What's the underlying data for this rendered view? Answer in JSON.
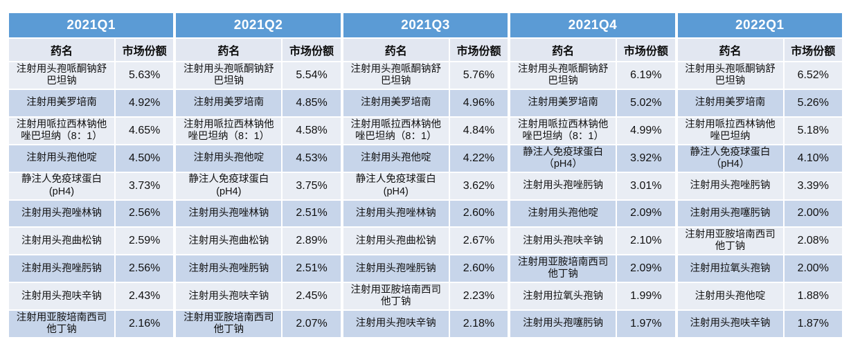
{
  "colors": {
    "accent": "#5b9bd5",
    "subheader_bg": "#e2e7f1",
    "row_light": "#e9edf4",
    "row_dark": "#c7d5ea",
    "header_text": "#ffffff",
    "body_text": "#101010"
  },
  "chart_data": {
    "type": "table",
    "title": "",
    "col_headers": [
      "药名",
      "市场份额"
    ],
    "quarter_labels": [
      "2021Q1",
      "2021Q2",
      "2021Q3",
      "2021Q4",
      "2022Q1"
    ],
    "quarters": [
      {
        "label": "2021Q1",
        "rows": [
          [
            "注射用头孢哌酮钠舒巴坦钠",
            "5.63%"
          ],
          [
            "注射用美罗培南",
            "4.92%"
          ],
          [
            "注射用哌拉西林钠他唑巴坦纳（8：1）",
            "4.65%"
          ],
          [
            "注射用头孢他啶",
            "4.50%"
          ],
          [
            "静注人免疫球蛋白(pH4)",
            "3.73%"
          ],
          [
            "注射用头孢唑林钠",
            "2.56%"
          ],
          [
            "注射用头孢曲松钠",
            "2.59%"
          ],
          [
            "注射用头孢唑肟钠",
            "2.56%"
          ],
          [
            "注射用头孢呋辛钠",
            "2.43%"
          ],
          [
            "注射用亚胺培南西司他丁钠",
            "2.16%"
          ]
        ]
      },
      {
        "label": "2021Q2",
        "rows": [
          [
            "注射用头孢哌酮钠舒巴坦钠",
            "5.54%"
          ],
          [
            "注射用美罗培南",
            "4.85%"
          ],
          [
            "注射用哌拉西林钠他唑巴坦纳（8：1）",
            "4.58%"
          ],
          [
            "注射用头孢他啶",
            "4.53%"
          ],
          [
            "静注人免疫球蛋白(pH4)",
            "3.75%"
          ],
          [
            "注射用头孢唑林钠",
            "2.51%"
          ],
          [
            "注射用头孢曲松钠",
            "2.89%"
          ],
          [
            "注射用头孢唑肟钠",
            "2.51%"
          ],
          [
            "注射用头孢呋辛钠",
            "2.45%"
          ],
          [
            "注射用亚胺培南西司他丁钠",
            "2.07%"
          ]
        ]
      },
      {
        "label": "2021Q3",
        "rows": [
          [
            "注射用头孢哌酮钠舒巴坦钠",
            "5.76%"
          ],
          [
            "注射用美罗培南",
            "4.96%"
          ],
          [
            "注射用哌拉西林钠他唑巴坦纳（8：1）",
            "4.84%"
          ],
          [
            "注射用头孢他啶",
            "4.22%"
          ],
          [
            "静注人免疫球蛋白(pH4)",
            "3.62%"
          ],
          [
            "注射用头孢唑林钠",
            "2.60%"
          ],
          [
            "注射用头孢曲松钠",
            "2.67%"
          ],
          [
            "注射用头孢唑肟钠",
            "2.60%"
          ],
          [
            "注射用亚胺培南西司他丁钠",
            "2.23%"
          ],
          [
            "注射用头孢呋辛钠",
            "2.18%"
          ]
        ]
      },
      {
        "label": "2021Q4",
        "rows": [
          [
            "注射用头孢哌酮钠舒巴坦钠",
            "6.19%"
          ],
          [
            "注射用美罗培南",
            "5.02%"
          ],
          [
            "注射用哌拉西林钠他唑巴坦纳（8：1）",
            "4.99%"
          ],
          [
            "静注人免疫球蛋白（pH4）",
            "3.92%"
          ],
          [
            "注射用头孢唑肟钠",
            "3.01%"
          ],
          [
            "注射用头孢他啶",
            "2.09%"
          ],
          [
            "注射用头孢呋辛钠",
            "2.10%"
          ],
          [
            "注射用亚胺培南西司他丁钠",
            "2.09%"
          ],
          [
            "注射用拉氧头孢钠",
            "1.99%"
          ],
          [
            "注射用头孢噻肟钠",
            "1.97%"
          ]
        ]
      },
      {
        "label": "2022Q1",
        "rows": [
          [
            "注射用头孢哌酮钠舒巴坦钠",
            "6.52%"
          ],
          [
            "注射用美罗培南",
            "5.26%"
          ],
          [
            "注射用哌拉西林钠他唑巴坦纳",
            "5.18%"
          ],
          [
            "静注人免疫球蛋白（pH4）",
            "4.10%"
          ],
          [
            "注射用头孢唑肟钠",
            "3.39%"
          ],
          [
            "注射用头孢噻肟钠",
            "2.00%"
          ],
          [
            "注射用亚胺培南西司他丁钠",
            "2.08%"
          ],
          [
            "注射用拉氧头孢钠",
            "2.00%"
          ],
          [
            "注射用头孢他啶",
            "1.88%"
          ],
          [
            "注射用头孢呋辛钠",
            "1.87%"
          ]
        ]
      }
    ]
  }
}
